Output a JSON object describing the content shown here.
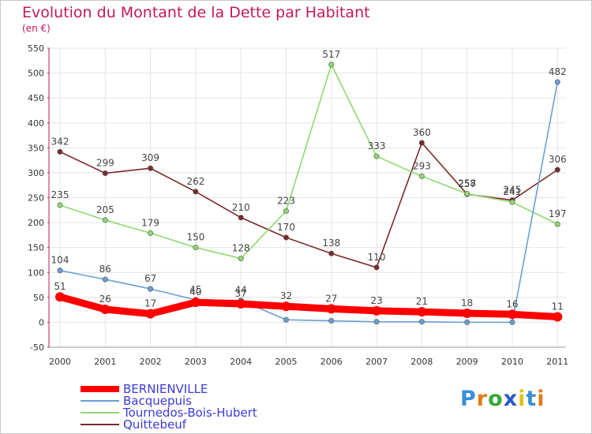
{
  "chart_data": {
    "type": "line",
    "title": "Evolution du Montant de la Dette par Habitant",
    "subtitle": "(en €)",
    "xlabel": "",
    "ylabel": "",
    "categories": [
      "2000",
      "2001",
      "2002",
      "2003",
      "2004",
      "2005",
      "2006",
      "2007",
      "2008",
      "2009",
      "2010",
      "2011"
    ],
    "ylim": [
      -50,
      550
    ],
    "yticks": [
      -50,
      0,
      50,
      100,
      150,
      200,
      250,
      300,
      350,
      400,
      450,
      500,
      550
    ],
    "grid": true,
    "legend_position": "bottom-left",
    "series": [
      {
        "name": "BERNIENVILLE",
        "color": "#ff0000",
        "values": [
          51,
          26,
          17,
          40,
          37,
          32,
          27,
          23,
          21,
          18,
          16,
          11
        ],
        "labels": [
          "51",
          "26",
          "17",
          "40",
          "37",
          "32",
          "27",
          "23",
          "21",
          "18",
          "16",
          "11"
        ]
      },
      {
        "name": "Bacquepuis",
        "color": "#6a9fd0",
        "values": [
          104,
          86,
          67,
          45,
          44,
          5,
          3,
          1,
          1,
          0,
          0,
          482
        ],
        "labels": [
          "104",
          "86",
          "67",
          "45",
          "44",
          "",
          "",
          "",
          "",
          "",
          "",
          "482"
        ]
      },
      {
        "name": "Tournedos-Bois-Hubert",
        "color": "#8fd870",
        "values": [
          235,
          205,
          179,
          150,
          128,
          223,
          517,
          333,
          293,
          258,
          241,
          197
        ],
        "labels": [
          "235",
          "205",
          "179",
          "150",
          "128",
          "223",
          "517",
          "333",
          "293",
          "258",
          "241",
          "197"
        ]
      },
      {
        "name": "Quittebeuf",
        "color": "#7a2a2a",
        "values": [
          342,
          299,
          309,
          262,
          210,
          170,
          138,
          110,
          360,
          257,
          245,
          306
        ],
        "labels": [
          "342",
          "299",
          "309",
          "262",
          "210",
          "170",
          "138",
          "110",
          "360",
          "257",
          "245",
          "306"
        ]
      }
    ]
  }
}
